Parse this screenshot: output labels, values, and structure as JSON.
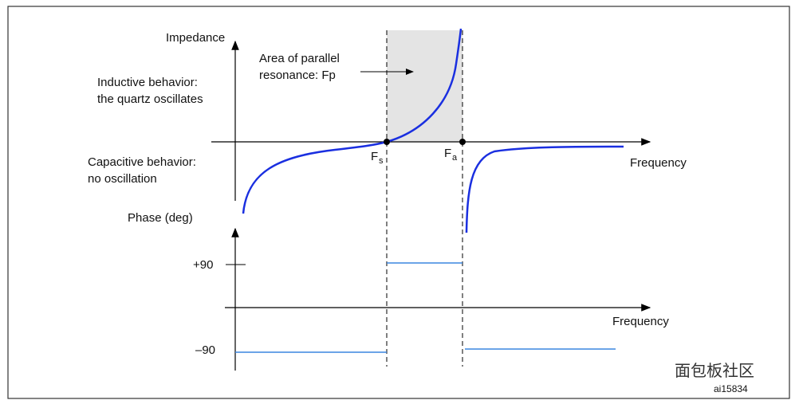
{
  "impedance_axis": {
    "title": "Impedance",
    "x_label": "Frequency"
  },
  "phase_axis": {
    "title": "Phase (deg)",
    "x_label": "Frequency",
    "plus_label": "+90",
    "minus_label": "–90"
  },
  "annotation": {
    "line1": "Area of parallel",
    "line2": "resonance: Fp"
  },
  "inductive": {
    "line1": "Inductive behavior:",
    "line2": "the quartz oscillates"
  },
  "capacitive": {
    "line1": "Capacitive behavior:",
    "line2": "no oscillation"
  },
  "fs": {
    "main": "F",
    "sub": "s"
  },
  "fa": {
    "main": "F",
    "sub": "a"
  },
  "figure_id": "ai15834",
  "watermark": "面包板社区"
}
